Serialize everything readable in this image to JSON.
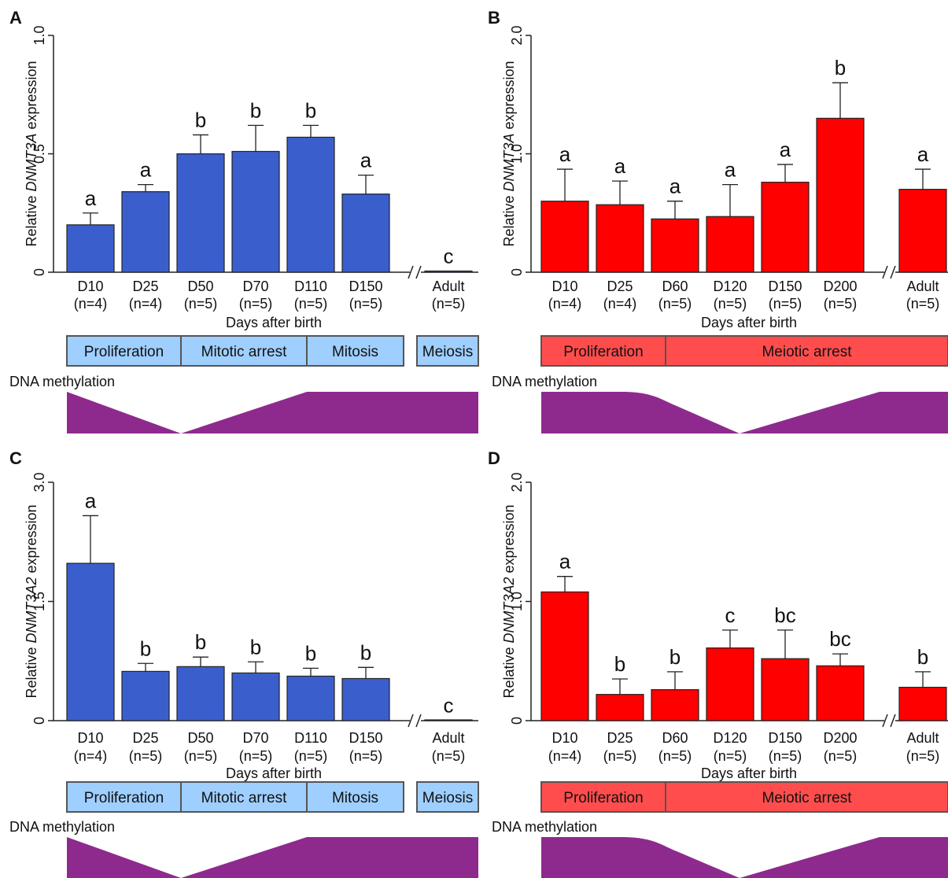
{
  "chart_data": [
    {
      "panel": "A",
      "type": "bar",
      "ylabel_prefix": "Relative ",
      "ylabel_gene": "DNMT3A",
      "ylabel_suffix": " expression",
      "xlabel": "Days after birth",
      "ylim": [
        0,
        1.0
      ],
      "yticks": [
        "0",
        "0.5",
        "1.0"
      ],
      "ytick_values": [
        0,
        0.5,
        1.0
      ],
      "bar_color": "#3a5fcd",
      "categories": [
        "D10",
        "D25",
        "D50",
        "D70",
        "D110",
        "D150",
        "Adult"
      ],
      "n_labels": [
        "(n=4)",
        "(n=4)",
        "(n=5)",
        "(n=5)",
        "(n=5)",
        "(n=5)",
        "(n=5)"
      ],
      "values": [
        0.2,
        0.34,
        0.5,
        0.51,
        0.57,
        0.33,
        0.005
      ],
      "errors": [
        0.05,
        0.03,
        0.08,
        0.11,
        0.05,
        0.08,
        0.0
      ],
      "significance": [
        "a",
        "a",
        "b",
        "b",
        "b",
        "a",
        "c"
      ],
      "axis_break_before_last": true,
      "stages": [
        {
          "label": "Proliferation",
          "color": "#9fcfff"
        },
        {
          "label": "Mitotic arrest",
          "color": "#9fcfff"
        },
        {
          "label": "Mitosis",
          "color": "#9fcfff"
        },
        {
          "label": "Meiosis",
          "color": "#9fcfff"
        }
      ],
      "methylation_label": "DNA methylation",
      "methylation_color": "#8e2a8e"
    },
    {
      "panel": "B",
      "type": "bar",
      "ylabel_prefix": "Relative ",
      "ylabel_gene": "DNMT3A",
      "ylabel_suffix": " expression",
      "xlabel": "Days after birth",
      "ylim": [
        0,
        2.0
      ],
      "yticks": [
        "0",
        "1.0",
        "2.0"
      ],
      "ytick_values": [
        0,
        1.0,
        2.0
      ],
      "bar_color": "#ff0000",
      "categories": [
        "D10",
        "D25",
        "D60",
        "D120",
        "D150",
        "D200",
        "Adult"
      ],
      "n_labels": [
        "(n=4)",
        "(n=4)",
        "(n=5)",
        "(n=5)",
        "(n=5)",
        "(n=5)",
        "(n=5)"
      ],
      "values": [
        0.6,
        0.57,
        0.45,
        0.47,
        0.76,
        1.3,
        0.7
      ],
      "errors": [
        0.27,
        0.2,
        0.15,
        0.27,
        0.15,
        0.3,
        0.17
      ],
      "significance": [
        "a",
        "a",
        "a",
        "a",
        "a",
        "b",
        "a"
      ],
      "axis_break_before_last": true,
      "stages": [
        {
          "label": "Proliferation",
          "color": "#ff4d4d"
        },
        {
          "label": "Meiotic arrest",
          "color": "#ff4d4d"
        }
      ],
      "methylation_label": "DNA methylation",
      "methylation_color": "#8e2a8e"
    },
    {
      "panel": "C",
      "type": "bar",
      "ylabel_prefix": "Relative ",
      "ylabel_gene": "DNMT3A2",
      "ylabel_suffix": " expression",
      "xlabel": "Days after birth",
      "ylim": [
        0,
        3.0
      ],
      "yticks": [
        "0",
        "1.5",
        "3.0"
      ],
      "ytick_values": [
        0,
        1.5,
        3.0
      ],
      "bar_color": "#3a5fcd",
      "categories": [
        "D10",
        "D25",
        "D50",
        "D70",
        "D110",
        "D150",
        "Adult"
      ],
      "n_labels": [
        "(n=4)",
        "(n=5)",
        "(n=5)",
        "(n=5)",
        "(n=5)",
        "(n=5)",
        "(n=5)"
      ],
      "values": [
        1.98,
        0.62,
        0.68,
        0.6,
        0.56,
        0.53,
        0.005
      ],
      "errors": [
        0.6,
        0.1,
        0.12,
        0.14,
        0.1,
        0.14,
        0.0
      ],
      "significance": [
        "a",
        "b",
        "b",
        "b",
        "b",
        "b",
        "c"
      ],
      "axis_break_before_last": true,
      "stages": [
        {
          "label": "Proliferation",
          "color": "#9fcfff"
        },
        {
          "label": "Mitotic arrest",
          "color": "#9fcfff"
        },
        {
          "label": "Mitosis",
          "color": "#9fcfff"
        },
        {
          "label": "Meiosis",
          "color": "#9fcfff"
        }
      ],
      "methylation_label": "DNA methylation",
      "methylation_color": "#8e2a8e"
    },
    {
      "panel": "D",
      "type": "bar",
      "ylabel_prefix": "Relative ",
      "ylabel_gene": "DNMT3A2",
      "ylabel_suffix": " expression",
      "xlabel": "Days after birth",
      "ylim": [
        0,
        2.0
      ],
      "yticks": [
        "0",
        "1.0",
        "2.0"
      ],
      "ytick_values": [
        0,
        1.0,
        2.0
      ],
      "bar_color": "#ff0000",
      "categories": [
        "D10",
        "D25",
        "D60",
        "D120",
        "D150",
        "D200",
        "Adult"
      ],
      "n_labels": [
        "(n=4)",
        "(n=5)",
        "(n=5)",
        "(n=5)",
        "(n=5)",
        "(n=5)",
        "(n=5)"
      ],
      "values": [
        1.08,
        0.22,
        0.26,
        0.61,
        0.52,
        0.46,
        0.28
      ],
      "errors": [
        0.13,
        0.13,
        0.15,
        0.15,
        0.24,
        0.1,
        0.13
      ],
      "significance": [
        "a",
        "b",
        "b",
        "c",
        "bc",
        "bc",
        "b"
      ],
      "axis_break_before_last": true,
      "stages": [
        {
          "label": "Proliferation",
          "color": "#ff4d4d"
        },
        {
          "label": "Meiotic arrest",
          "color": "#ff4d4d"
        }
      ],
      "methylation_label": "DNA methylation",
      "methylation_color": "#8e2a8e"
    }
  ]
}
